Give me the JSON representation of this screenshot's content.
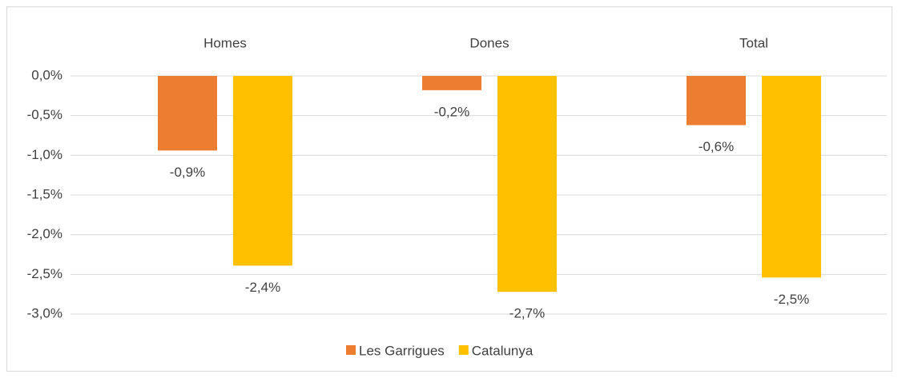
{
  "chart_data": {
    "type": "bar",
    "categories": [
      "Homes",
      "Dones",
      "Total"
    ],
    "series": [
      {
        "name": "Les Garrigues",
        "color": "#ed7d31",
        "values": [
          -0.94,
          -0.18,
          -0.62
        ],
        "value_labels": [
          "-0,9%",
          "-0,2%",
          "-0,6%"
        ]
      },
      {
        "name": "Catalunya",
        "color": "#ffc000",
        "values": [
          -2.39,
          -2.72,
          -2.54
        ],
        "value_labels": [
          "-2,4%",
          "-2,7%",
          "-2,5%"
        ]
      }
    ],
    "ylim": [
      -3,
      0
    ],
    "yticks": [
      {
        "value": 0,
        "label": "0,0%"
      },
      {
        "value": -0.5,
        "label": "-0,5%"
      },
      {
        "value": -1,
        "label": "-1,0%"
      },
      {
        "value": -1.5,
        "label": "-1,5%"
      },
      {
        "value": -2,
        "label": "-2,0%"
      },
      {
        "value": -2.5,
        "label": "-2,5%"
      },
      {
        "value": -3,
        "label": "-3,0%"
      }
    ],
    "grid": true,
    "legend": "bottom"
  }
}
